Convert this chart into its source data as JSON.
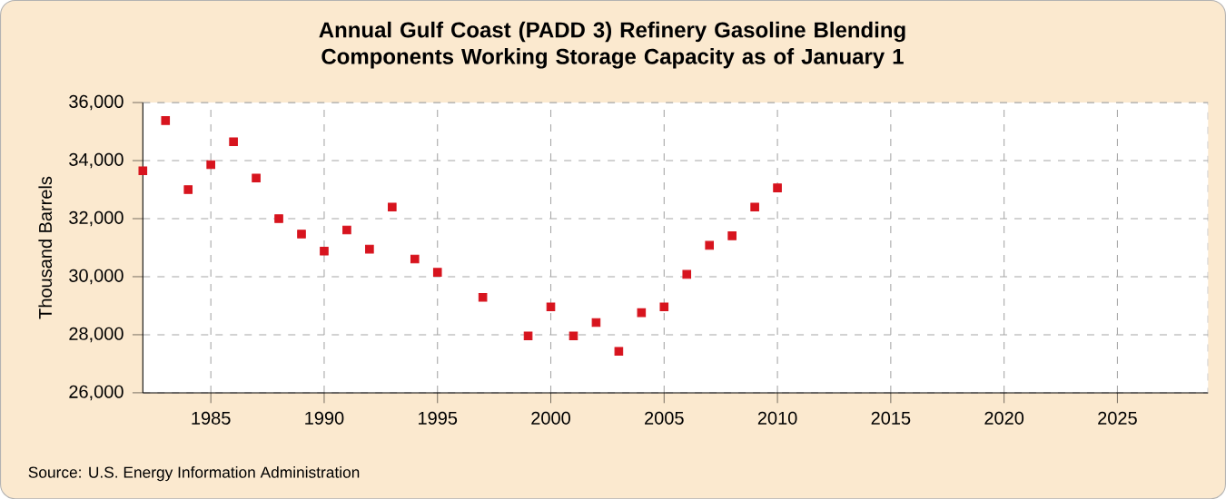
{
  "chart_data": {
    "type": "scatter",
    "title": "Annual Gulf Coast (PADD 3) Refinery Gasoline Blending Components Working Storage Capacity as of January 1",
    "ylabel": "Thousand Barrels",
    "x": [
      1982,
      1983,
      1984,
      1985,
      1986,
      1987,
      1988,
      1989,
      1990,
      1991,
      1992,
      1993,
      1994,
      1995,
      1997,
      1999,
      2000,
      2001,
      2002,
      2003,
      2004,
      2005,
      2006,
      2007,
      2008,
      2009,
      2010
    ],
    "series": [
      {
        "color": "#d7141e",
        "values": [
          33650,
          35380,
          33000,
          33860,
          34650,
          33400,
          32000,
          31470,
          30880,
          31610,
          30950,
          32400,
          30610,
          30150,
          29290,
          27960,
          28960,
          27960,
          28420,
          27430,
          28760,
          28960,
          30080,
          31080,
          31410,
          32400,
          33060
        ]
      }
    ],
    "xlim": [
      1982,
      2029
    ],
    "xticks": [
      1985,
      1990,
      1995,
      2000,
      2005,
      2010,
      2015,
      2020,
      2025
    ],
    "ylim": [
      26000,
      36000
    ],
    "yticks": [
      {
        "value": 26000,
        "label": "26,000"
      },
      {
        "value": 28000,
        "label": "28,000"
      },
      {
        "value": 30000,
        "label": "30,000"
      },
      {
        "value": 32000,
        "label": "32,000"
      },
      {
        "value": 34000,
        "label": "34,000"
      },
      {
        "value": 36000,
        "label": "36,000"
      }
    ],
    "grid": true,
    "marker": "square",
    "annotations": [
      "Source: U.S. Energy Information Administration"
    ]
  }
}
